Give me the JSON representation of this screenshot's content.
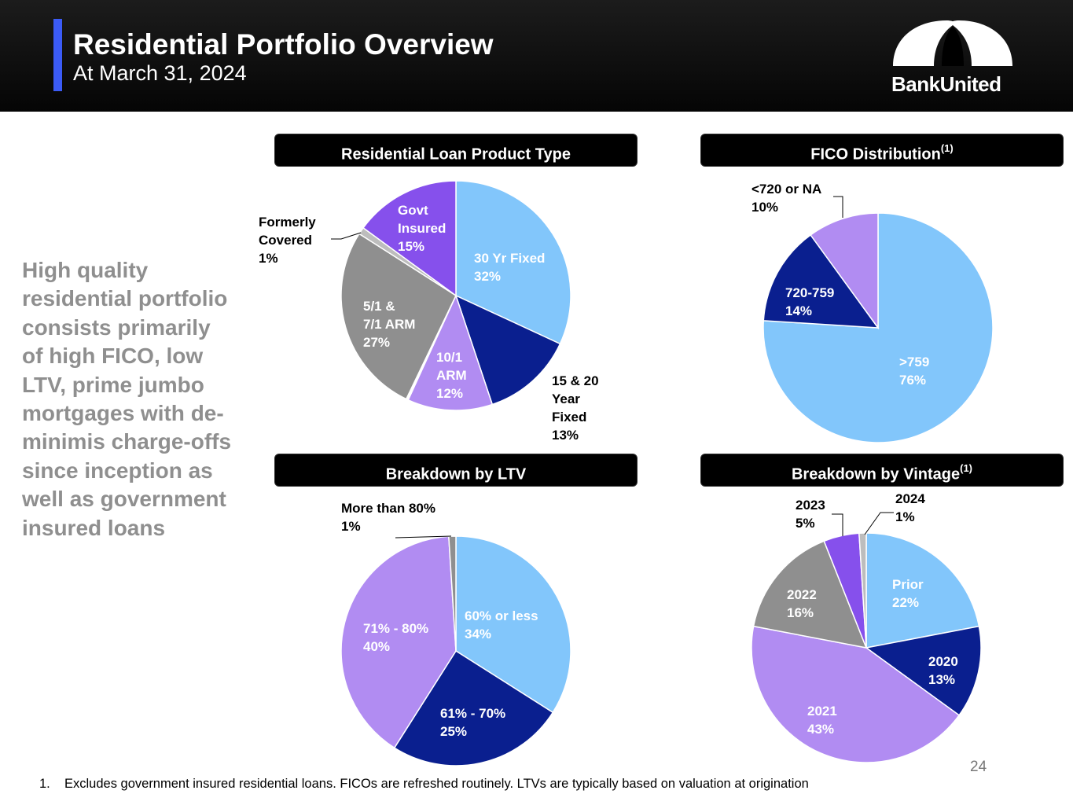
{
  "header": {
    "title": "Residential Portfolio Overview",
    "subtitle": "At March 31, 2024",
    "logo_text": "BankUnited",
    "colors": {
      "accent": "#3b5bf6",
      "background": "#000000"
    }
  },
  "side_text": "High quality residential portfolio consists primarily of high FICO, low LTV, prime jumbo mortgages with de-minimis charge-offs since inception as well as government insured loans",
  "footnote": {
    "number": "1.",
    "text": "Excludes government insured residential loans. FICOs are refreshed routinely. LTVs are typically based on valuation at origination"
  },
  "page_number": "24",
  "chart_data": [
    {
      "type": "pie",
      "title": "Residential Loan Product Type",
      "title_note": "",
      "slices": [
        {
          "label": "30 Yr Fixed",
          "value": 32,
          "value_text": "32%",
          "color": "#82c6fb"
        },
        {
          "label": "15 & 20 Year Fixed",
          "value": 13,
          "value_text": "13%",
          "color": "#0a1f8f"
        },
        {
          "label": "10/1 ARM",
          "value": 12,
          "value_text": "12%",
          "color": "#b18cf2"
        },
        {
          "label": "",
          "value": 0.3,
          "value_text": "",
          "color": "#ffffff"
        },
        {
          "label": "5/1 & 7/1 ARM",
          "value": 27,
          "value_text": "27%",
          "color": "#8f8f8f"
        },
        {
          "label": "Formerly Covered",
          "value": 1,
          "value_text": "1%",
          "color": "#bdbdbd"
        },
        {
          "label": "Govt Insured",
          "value": 15,
          "value_text": "15%",
          "color": "#8650ec"
        }
      ]
    },
    {
      "type": "pie",
      "title": "FICO Distribution",
      "title_note": "(1)",
      "slices": [
        {
          "label": ">759",
          "value": 76,
          "value_text": "76%",
          "color": "#82c6fb"
        },
        {
          "label": "720-759",
          "value": 14,
          "value_text": "14%",
          "color": "#0a1f8f"
        },
        {
          "label": "<720 or NA",
          "value": 10,
          "value_text": "10%",
          "color": "#b18cf2"
        }
      ]
    },
    {
      "type": "pie",
      "title": "Breakdown by LTV",
      "title_note": "",
      "slices": [
        {
          "label": "60% or less",
          "value": 34,
          "value_text": "34%",
          "color": "#82c6fb"
        },
        {
          "label": "61% - 70%",
          "value": 25,
          "value_text": "25%",
          "color": "#0a1f8f"
        },
        {
          "label": "71% - 80%",
          "value": 40,
          "value_text": "40%",
          "color": "#b18cf2"
        },
        {
          "label": "More than 80%",
          "value": 1,
          "value_text": "1%",
          "color": "#8f8f8f"
        }
      ]
    },
    {
      "type": "pie",
      "title": "Breakdown by Vintage",
      "title_note": "(1)",
      "slices": [
        {
          "label": "Prior",
          "value": 22,
          "value_text": "22%",
          "color": "#82c6fb"
        },
        {
          "label": "2020",
          "value": 13,
          "value_text": "13%",
          "color": "#0a1f8f"
        },
        {
          "label": "2021",
          "value": 43,
          "value_text": "43%",
          "color": "#b18cf2"
        },
        {
          "label": "2022",
          "value": 16,
          "value_text": "16%",
          "color": "#8f8f8f"
        },
        {
          "label": "2023",
          "value": 5,
          "value_text": "5%",
          "color": "#8650ec"
        },
        {
          "label": "2024",
          "value": 1,
          "value_text": "1%",
          "color": "#bdbdbd"
        }
      ]
    }
  ]
}
